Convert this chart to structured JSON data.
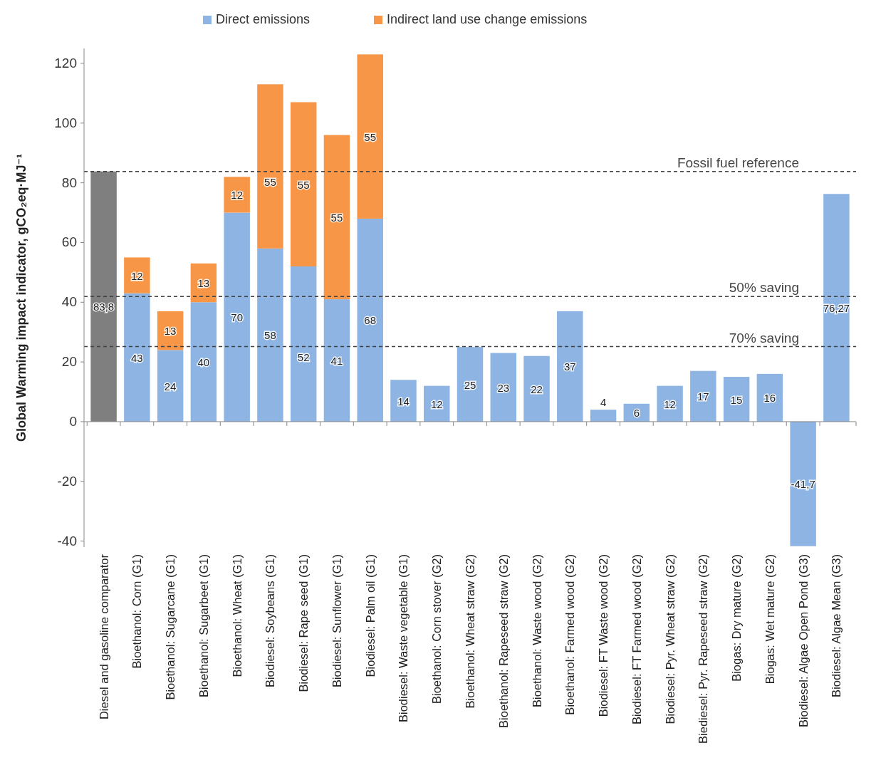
{
  "chart_data": {
    "type": "bar",
    "stacked": true,
    "ylabel": "Global Warming impact indicator, gCO₂eq·MJ⁻¹",
    "categories": [
      "Diesel and gasoline comparator",
      "Bioethanol: Corn (G1)",
      "Bioethanol: Sugarcane (G1)",
      "Bioethanol: Sugarbeet (G1)",
      "Bioethanol: Wheat (G1)",
      "Biodiesel: Soybeans (G1)",
      "Biodiesel: Rape seed (G1)",
      "Biodiesel: Sunflower (G1)",
      "Biodiesel: Palm oil (G1)",
      "Biodiesel: Waste vegetable (G1)",
      "Bioethanol: Corn stover (G2)",
      "Bioethanol: Wheat straw (G2)",
      "Bioethanol: Rapeseed straw (G2)",
      "Bioethanol: Waste wood (G2)",
      "Bioethanol: Farmed wood (G2)",
      "Biodiesel: FT Waste wood  (G2)",
      "Biodiesel: FT Farmed wood (G2)",
      "Biodiesel: Pyr. Wheat straw (G2)",
      "Biediesel: Pyr. Rapeseed straw (G2)",
      "Biogas: Dry mature (G2)",
      "Biogas: Wet mature (G2)",
      "Biodiesel: Algae Open Pond (G3)",
      "Biodiesel: Algae Mean (G3)"
    ],
    "series": [
      {
        "name": "Direct emissions",
        "color": "#8db4e2",
        "colors": [
          "#7f7f7f",
          "#8db4e2",
          "#8db4e2",
          "#8db4e2",
          "#8db4e2",
          "#8db4e2",
          "#8db4e2",
          "#8db4e2",
          "#8db4e2",
          "#8db4e2",
          "#8db4e2",
          "#8db4e2",
          "#8db4e2",
          "#8db4e2",
          "#8db4e2",
          "#8db4e2",
          "#8db4e2",
          "#8db4e2",
          "#8db4e2",
          "#8db4e2",
          "#8db4e2",
          "#8db4e2",
          "#8db4e2"
        ],
        "values": [
          83.8,
          43,
          24,
          40,
          70,
          58,
          52,
          41,
          68,
          14,
          12,
          25,
          23,
          22,
          37,
          4,
          6,
          12,
          17,
          15,
          16,
          -41.7,
          76.27
        ],
        "value_labels": [
          "83,8",
          "43",
          "24",
          "40",
          "70",
          "58",
          "52",
          "41",
          "68",
          "14",
          "12",
          "25",
          "23",
          "22",
          "37",
          "4",
          "6",
          "12",
          "17",
          "15",
          "16",
          "-41,7",
          "76,27"
        ]
      },
      {
        "name": "Indirect land use change emissions",
        "color": "#f79646",
        "values": [
          null,
          12,
          13,
          13,
          12,
          55,
          55,
          55,
          55,
          null,
          null,
          null,
          null,
          null,
          null,
          null,
          null,
          null,
          null,
          null,
          null,
          null,
          null
        ],
        "value_labels": [
          null,
          "12",
          "13",
          "13",
          "12",
          "55",
          "55",
          "55",
          "55",
          null,
          null,
          null,
          null,
          null,
          null,
          null,
          null,
          null,
          null,
          null,
          null,
          null,
          null
        ]
      }
    ],
    "ylim": [
      -42,
      125
    ],
    "yticks": [
      -40,
      -20,
      0,
      20,
      40,
      60,
      80,
      100,
      120
    ],
    "ref_lines": [
      {
        "axis": "y",
        "value": 83.8,
        "label": "Fossil fuel reference",
        "line_style": "dashed",
        "color": "#404040"
      },
      {
        "axis": "y",
        "value": 41.9,
        "label": "50% saving",
        "line_style": "dashed",
        "color": "#404040"
      },
      {
        "axis": "y",
        "value": 25.14,
        "label": "70% saving",
        "line_style": "dashed",
        "color": "#404040"
      }
    ],
    "legend": "top"
  }
}
